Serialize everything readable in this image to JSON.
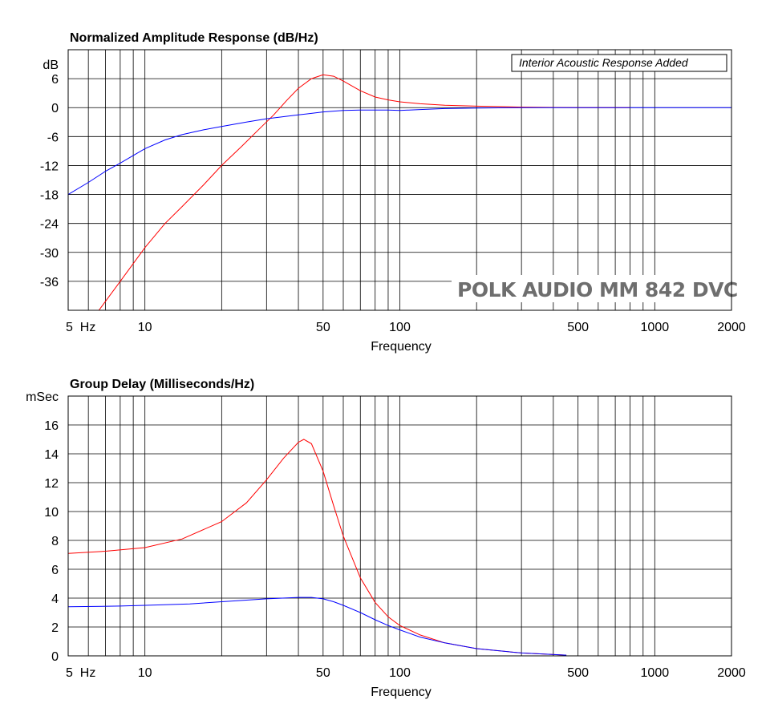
{
  "chart_data": [
    {
      "type": "line",
      "title": "Normalized Amplitude Response (dB/Hz)",
      "ylabel": "dB",
      "xlabel": "Frequency",
      "x_scale": "log",
      "xlim": [
        5,
        2000
      ],
      "ylim": [
        -42,
        12
      ],
      "y_ticks": [
        6,
        0,
        -6,
        -12,
        -18,
        -24,
        -30,
        -36
      ],
      "x_tick_labels": [
        {
          "value": 5,
          "label": "5  Hz"
        },
        {
          "value": 10,
          "label": "10"
        },
        {
          "value": 50,
          "label": "50"
        },
        {
          "value": 100,
          "label": "100"
        },
        {
          "value": 500,
          "label": "500"
        },
        {
          "value": 1000,
          "label": "1000"
        },
        {
          "value": 2000,
          "label": "2000"
        }
      ],
      "grid": true,
      "annotation": "Interior Acoustic Response Added",
      "watermark": "POLK AUDIO MM 842 DVC",
      "series": [
        {
          "color": "#ff0000",
          "x": [
            6.6,
            8,
            10,
            12,
            14,
            17,
            20,
            24,
            28,
            32,
            36,
            40,
            45,
            50,
            55,
            60,
            70,
            80,
            90,
            100,
            120,
            150,
            200,
            300,
            500,
            800
          ],
          "y": [
            -42,
            -36,
            -29,
            -24,
            -20.5,
            -16,
            -12,
            -8,
            -4.5,
            -1.5,
            1.5,
            4,
            6,
            6.8,
            6.5,
            5.5,
            3.5,
            2.2,
            1.6,
            1.2,
            0.8,
            0.5,
            0.3,
            0.1,
            0,
            0
          ]
        },
        {
          "color": "#0000ff",
          "x": [
            5,
            6,
            7,
            8,
            10,
            12,
            14,
            17,
            20,
            25,
            30,
            40,
            50,
            60,
            70,
            80,
            90,
            100,
            120,
            150,
            200,
            300,
            500,
            1000,
            2000
          ],
          "y": [
            -18,
            -15.5,
            -13.2,
            -11.5,
            -8.5,
            -6.7,
            -5.6,
            -4.6,
            -3.9,
            -3,
            -2.3,
            -1.5,
            -0.9,
            -0.6,
            -0.5,
            -0.5,
            -0.5,
            -0.6,
            -0.4,
            -0.2,
            -0.1,
            0,
            0,
            0,
            0
          ]
        }
      ]
    },
    {
      "type": "line",
      "title": "Group Delay (Milliseconds/Hz)",
      "ylabel": "mSec",
      "xlabel": "Frequency",
      "x_scale": "log",
      "xlim": [
        5,
        2000
      ],
      "ylim": [
        0,
        18
      ],
      "y_ticks": [
        16,
        14,
        12,
        10,
        8,
        6,
        4,
        2,
        0
      ],
      "x_tick_labels": [
        {
          "value": 5,
          "label": "5  Hz"
        },
        {
          "value": 10,
          "label": "10"
        },
        {
          "value": 50,
          "label": "50"
        },
        {
          "value": 100,
          "label": "100"
        },
        {
          "value": 500,
          "label": "500"
        },
        {
          "value": 1000,
          "label": "1000"
        },
        {
          "value": 2000,
          "label": "2000"
        }
      ],
      "grid": true,
      "series": [
        {
          "color": "#ff0000",
          "x": [
            5,
            7,
            10,
            14,
            20,
            25,
            30,
            35,
            40,
            42,
            45,
            50,
            55,
            60,
            70,
            80,
            90,
            100,
            120,
            150,
            200,
            300,
            450
          ],
          "y": [
            7.1,
            7.25,
            7.5,
            8.1,
            9.3,
            10.6,
            12.2,
            13.7,
            14.8,
            15,
            14.7,
            12.8,
            10.4,
            8.3,
            5.4,
            3.7,
            2.7,
            2.1,
            1.45,
            0.9,
            0.5,
            0.2,
            0.05
          ]
        },
        {
          "color": "#0000ff",
          "x": [
            5,
            8,
            10,
            15,
            20,
            30,
            40,
            45,
            50,
            55,
            60,
            70,
            80,
            90,
            100,
            120,
            150,
            200,
            300,
            450
          ],
          "y": [
            3.4,
            3.45,
            3.5,
            3.6,
            3.75,
            3.95,
            4.05,
            4.05,
            3.95,
            3.75,
            3.5,
            3,
            2.5,
            2.1,
            1.8,
            1.3,
            0.9,
            0.5,
            0.2,
            0.05
          ]
        }
      ]
    }
  ]
}
